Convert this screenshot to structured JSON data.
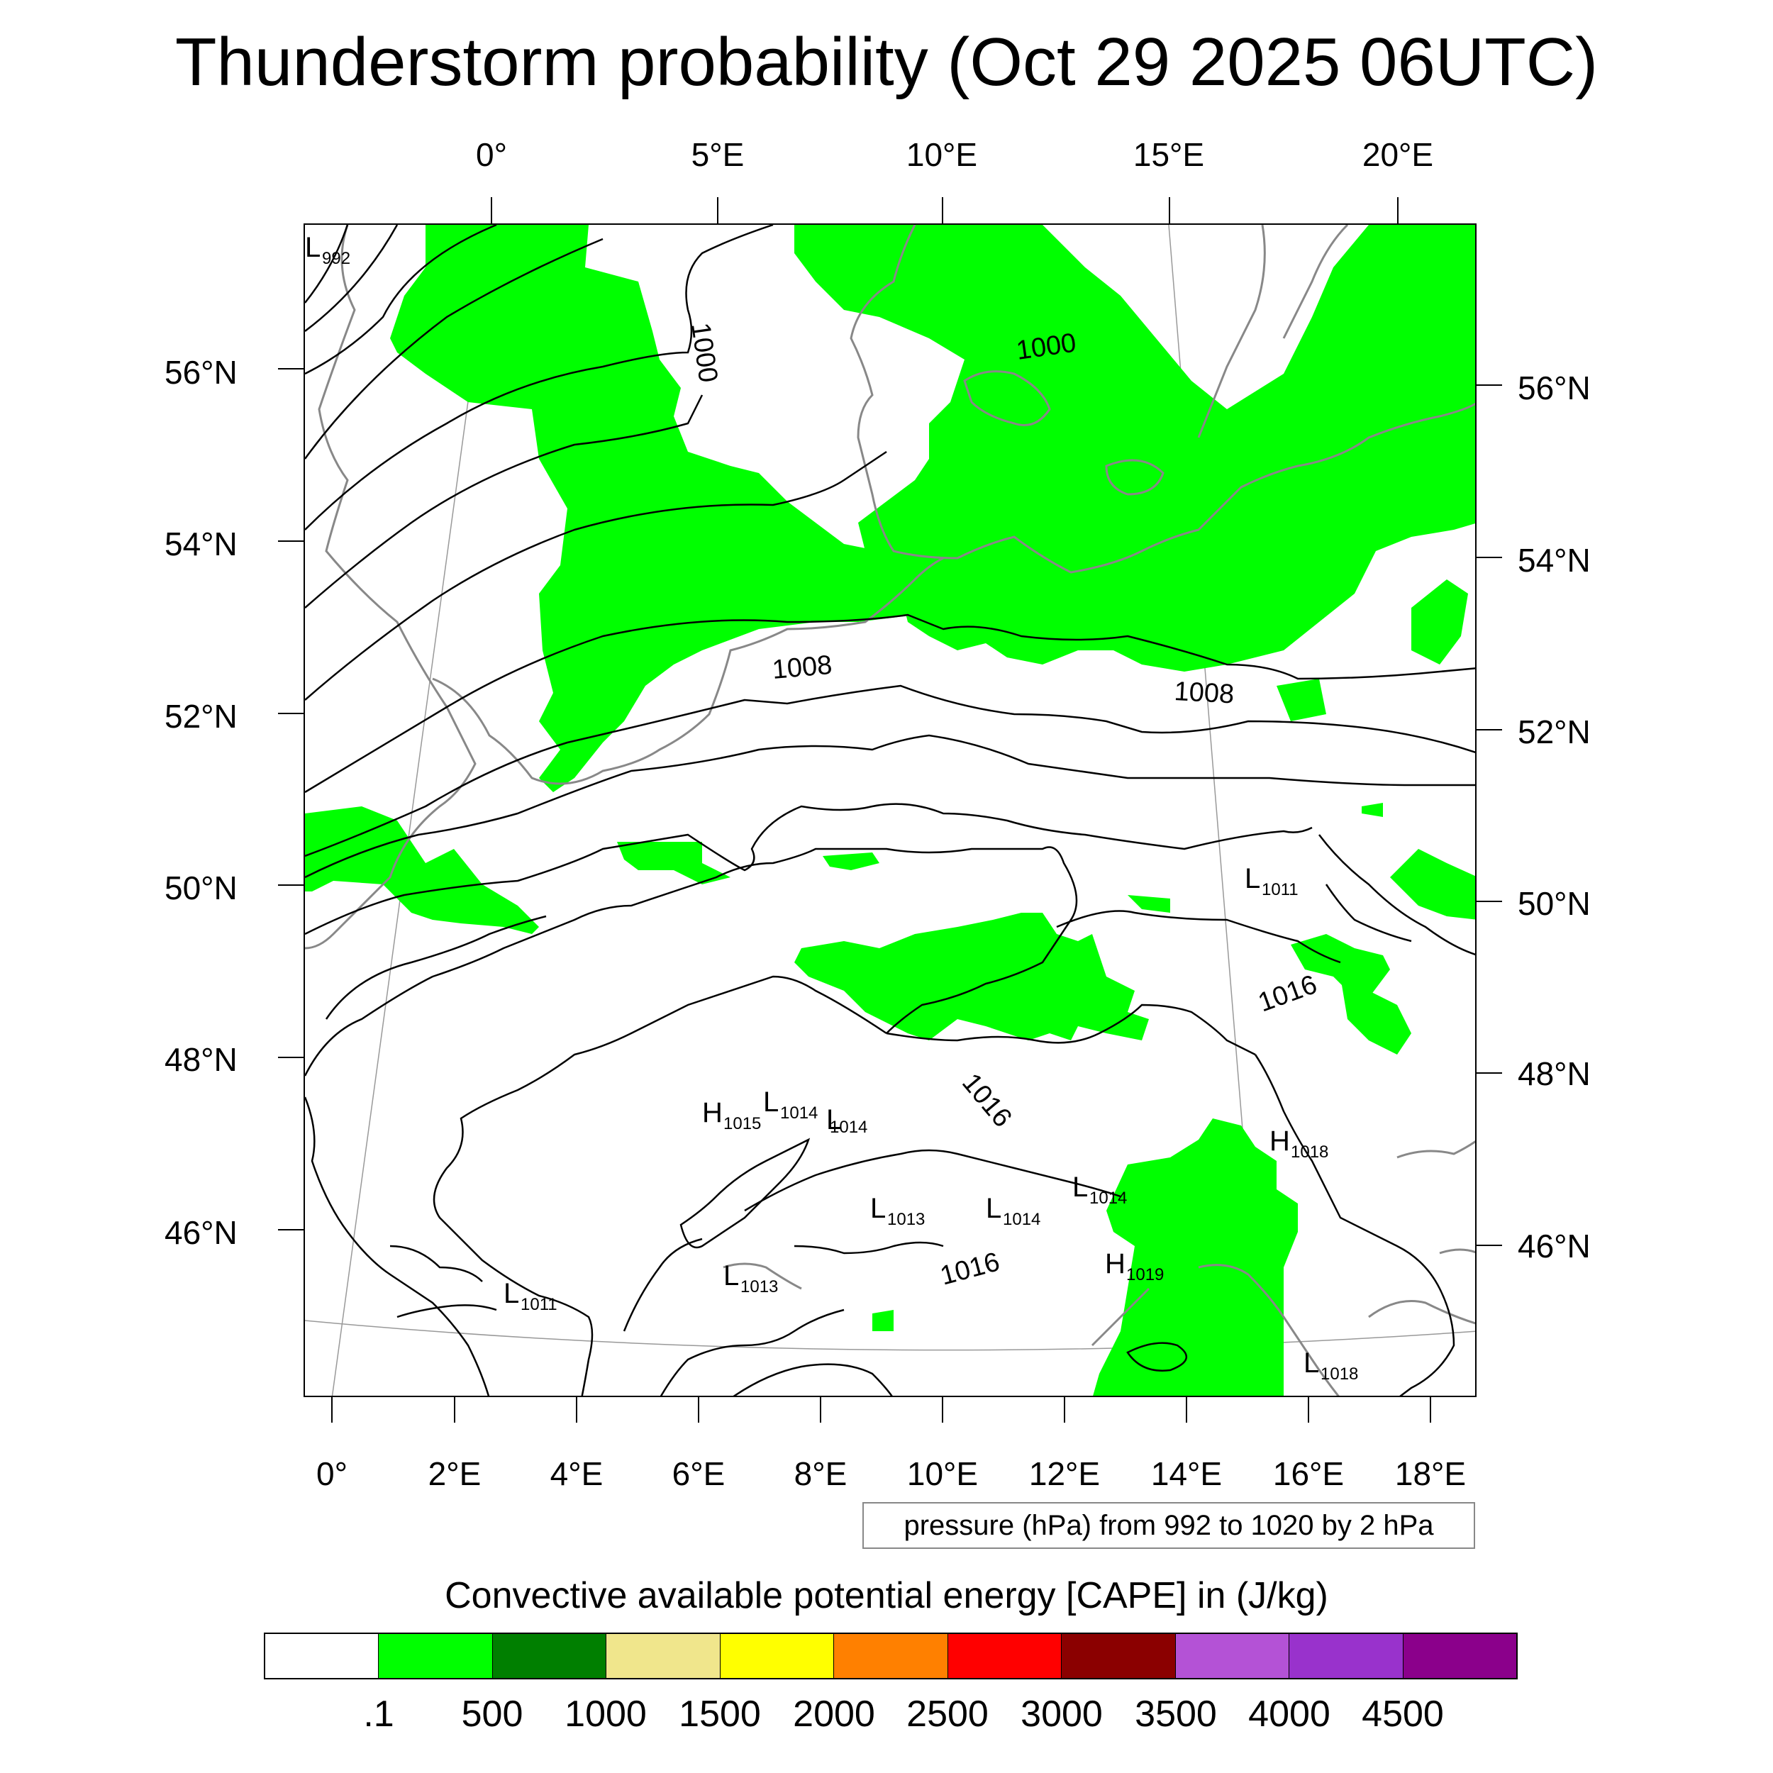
{
  "title": "Thunderstorm probability (Oct 29 2025 06UTC)",
  "top_longitude_labels": [
    "0°",
    "5°E",
    "10°E",
    "15°E",
    "20°E"
  ],
  "bottom_longitude_labels": [
    "0°",
    "2°E",
    "4°E",
    "6°E",
    "8°E",
    "10°E",
    "12°E",
    "14°E",
    "16°E",
    "18°E"
  ],
  "left_latitude_labels": [
    "56°N",
    "54°N",
    "52°N",
    "50°N",
    "48°N",
    "46°N"
  ],
  "right_latitude_labels": [
    "56°N",
    "54°N",
    "52°N",
    "50°N",
    "48°N",
    "46°N"
  ],
  "pressure_note": "pressure (hPa) from 992 to 1020 by 2 hPa",
  "pressure_contour_labels": [
    "1000",
    "1000",
    "1008",
    "1008",
    "1016",
    "1016",
    "1016"
  ],
  "pressure_centers": [
    {
      "type": "L",
      "value": "992"
    },
    {
      "type": "L",
      "value": "1011"
    },
    {
      "type": "H",
      "value": "1015"
    },
    {
      "type": "L",
      "value": "1014"
    },
    {
      "type": "L",
      "value": "1014"
    },
    {
      "type": "L",
      "value": "1013"
    },
    {
      "type": "L",
      "value": "1014"
    },
    {
      "type": "L",
      "value": "1014"
    },
    {
      "type": "H",
      "value": "1018"
    },
    {
      "type": "L",
      "value": "1013"
    },
    {
      "type": "H",
      "value": "1019"
    },
    {
      "type": "L",
      "value": "1011"
    },
    {
      "type": "L",
      "value": "1018"
    }
  ],
  "legend": {
    "title": "Convective available potential energy [CAPE] in (J/kg)",
    "colors": [
      "#ffffff",
      "#00ff00",
      "#007f00",
      "#f0e68c",
      "#ffff00",
      "#ff8000",
      "#ff0000",
      "#8b0000",
      "#b452d6",
      "#9932cc",
      "#8b008b"
    ],
    "labels": [
      ".1",
      "500",
      "1000",
      "1500",
      "2000",
      "2500",
      "3000",
      "3500",
      "4000",
      "4500"
    ]
  },
  "colors": {
    "cape_fill": "#00ff00",
    "coastline": "#888888",
    "isobar": "#000000"
  }
}
